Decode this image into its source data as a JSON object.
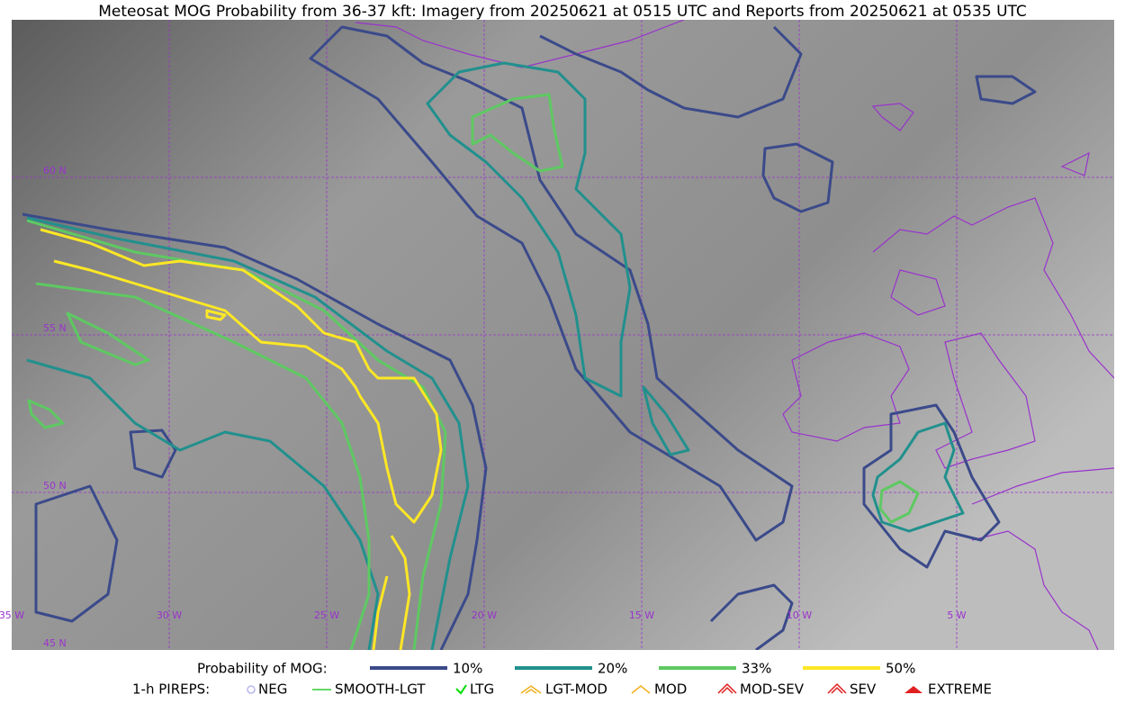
{
  "header": {
    "title": "Meteosat MOG Probability from 36-37 kft: Imagery from 20250621 at 0515 UTC and Reports from 20250621 at 0535 UTC"
  },
  "map": {
    "lat_labels": [
      "60 N",
      "55 N",
      "50 N",
      "45 N"
    ],
    "lon_labels": [
      "35 W",
      "30 W",
      "25 W",
      "20 W",
      "15 W",
      "10 W",
      "5 W"
    ]
  },
  "legend": {
    "probability": {
      "label": "Probability of MOG:",
      "items": [
        "10%",
        "20%",
        "33%",
        "50%"
      ]
    },
    "pireps": {
      "label": "1-h PIREPS:",
      "items": [
        "NEG",
        "SMOOTH-LGT",
        "LTG",
        "LGT-MOD",
        "MOD",
        "MOD-SEV",
        "SEV",
        "EXTREME"
      ]
    }
  }
}
